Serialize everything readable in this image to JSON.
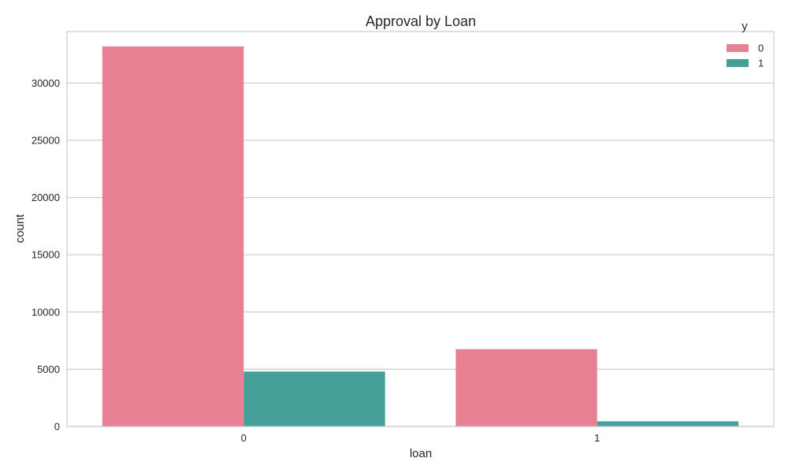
{
  "chart_data": {
    "type": "bar",
    "title": "Approval by Loan",
    "xlabel": "loan",
    "ylabel": "count",
    "categories": [
      "0",
      "1"
    ],
    "series": [
      {
        "name": "0",
        "values": [
          33200,
          6750
        ],
        "color": "#e88093"
      },
      {
        "name": "1",
        "values": [
          4800,
          450
        ],
        "color": "#46a099"
      }
    ],
    "ylim": [
      0,
      34500
    ],
    "yticks": [
      0,
      5000,
      10000,
      15000,
      20000,
      25000,
      30000
    ],
    "ytick_labels": [
      "0",
      "5000",
      "10000",
      "15000",
      "20000",
      "25000",
      "30000"
    ],
    "grid": true,
    "legend": {
      "title": "y",
      "placement": "top-right"
    },
    "colors": {
      "grid": "#cccccc",
      "frame": "#cccccc",
      "background": "#ffffff"
    }
  }
}
